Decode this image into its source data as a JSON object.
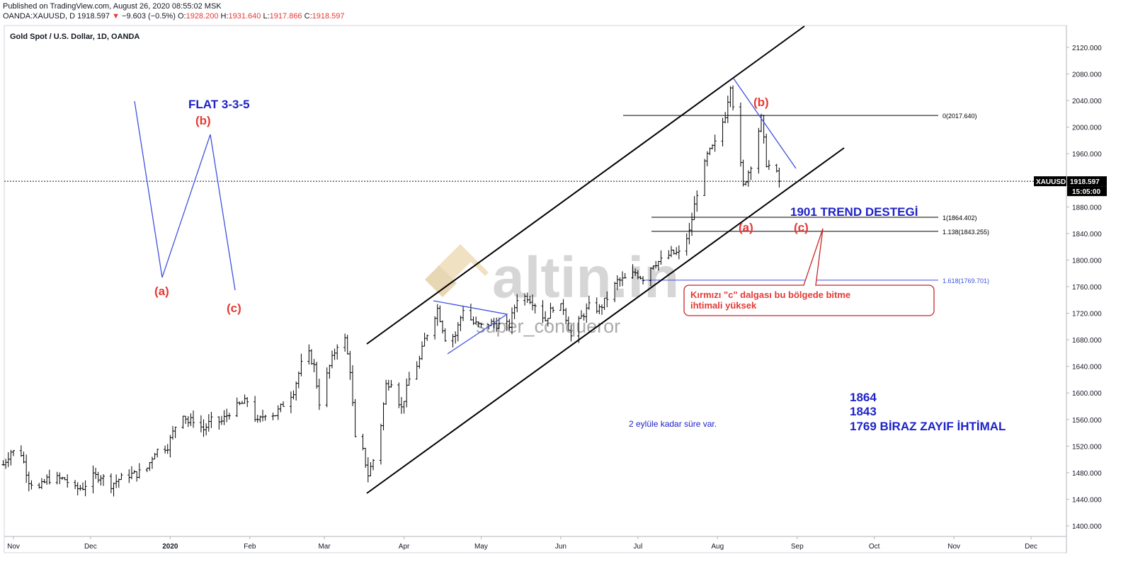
{
  "header": {
    "published": "Published on TradingView.com, August 26, 2020 08:55:02 MSK",
    "symbol_line": "OANDA:XAUUSD, D",
    "last": "1918.597",
    "change": "−9.603 (−0.5%)",
    "open_label": "O:",
    "open": "1928.200",
    "high_label": "H:",
    "high": "1931.640",
    "low_label": "L:",
    "low": "1917.866",
    "close_label": "C:",
    "close": "1918.597",
    "down_arrow": "▼"
  },
  "chart_data": {
    "type": "candlestick",
    "title": "Gold Spot / U.S. Dollar, 1D, OANDA",
    "ylim": [
      1360,
      2150
    ],
    "y_ticks": [
      "2120.000",
      "2080.000",
      "2040.000",
      "2000.000",
      "1960.000",
      "1920.000",
      "1880.000",
      "1840.000",
      "1800.000",
      "1760.000",
      "1720.000",
      "1680.000",
      "1640.000",
      "1600.000",
      "1560.000",
      "1520.000",
      "1480.000",
      "1440.000",
      "1400.000"
    ],
    "x_ticks": [
      "Nov",
      "Dec",
      "2020",
      "Feb",
      "Mar",
      "Apr",
      "May",
      "Jun",
      "Jul",
      "Aug",
      "Sep",
      "Oct",
      "Nov",
      "Dec"
    ],
    "x_range": [
      "2019-10-25",
      "2020-12-31"
    ],
    "price_tag": {
      "symbol": "XAUUSD",
      "value": "1918.597",
      "time": "15:05:00",
      "price": 1918.597
    },
    "fib_levels": [
      {
        "label": "0(2017.640)",
        "value": 2017.64
      },
      {
        "label": "1(1864.402)",
        "value": 1864.402
      },
      {
        "label": "1.138(1843.255)",
        "value": 1843.255
      },
      {
        "label": "1.618(1769.701)",
        "value": 1769.701
      }
    ],
    "closes": [
      [
        "2019-10-28",
        1492
      ],
      [
        "2019-10-31",
        1512
      ],
      [
        "2019-11-04",
        1509
      ],
      [
        "2019-11-07",
        1468
      ],
      [
        "2019-11-11",
        1456
      ],
      [
        "2019-11-14",
        1470
      ],
      [
        "2019-11-18",
        1471
      ],
      [
        "2019-11-21",
        1470
      ],
      [
        "2019-11-25",
        1455
      ],
      [
        "2019-11-28",
        1458
      ],
      [
        "2019-12-02",
        1474
      ],
      [
        "2019-12-05",
        1475
      ],
      [
        "2019-12-09",
        1462
      ],
      [
        "2019-12-12",
        1470
      ],
      [
        "2019-12-16",
        1477
      ],
      [
        "2019-12-19",
        1478
      ],
      [
        "2019-12-23",
        1487
      ],
      [
        "2019-12-26",
        1512
      ],
      [
        "2019-12-31",
        1520
      ],
      [
        "2020-01-03",
        1550
      ],
      [
        "2020-01-06",
        1570
      ],
      [
        "2020-01-08",
        1556
      ],
      [
        "2020-01-10",
        1560
      ],
      [
        "2020-01-14",
        1545
      ],
      [
        "2020-01-17",
        1558
      ],
      [
        "2020-01-21",
        1557
      ],
      [
        "2020-01-24",
        1571
      ],
      [
        "2020-01-28",
        1582
      ],
      [
        "2020-01-31",
        1588
      ],
      [
        "2020-02-04",
        1555
      ],
      [
        "2020-02-07",
        1570
      ],
      [
        "2020-02-11",
        1568
      ],
      [
        "2020-02-14",
        1583
      ],
      [
        "2020-02-18",
        1603
      ],
      [
        "2020-02-21",
        1643
      ],
      [
        "2020-02-24",
        1658
      ],
      [
        "2020-02-26",
        1640
      ],
      [
        "2020-02-28",
        1586
      ],
      [
        "2020-03-03",
        1640
      ],
      [
        "2020-03-06",
        1673
      ],
      [
        "2020-03-09",
        1680
      ],
      [
        "2020-03-11",
        1635
      ],
      [
        "2020-03-13",
        1530
      ],
      [
        "2020-03-16",
        1512
      ],
      [
        "2020-03-18",
        1477
      ],
      [
        "2020-03-20",
        1499
      ],
      [
        "2020-03-23",
        1553
      ],
      [
        "2020-03-25",
        1612
      ],
      [
        "2020-03-27",
        1618
      ],
      [
        "2020-03-31",
        1577
      ],
      [
        "2020-04-03",
        1620
      ],
      [
        "2020-04-07",
        1650
      ],
      [
        "2020-04-09",
        1680
      ],
      [
        "2020-04-14",
        1727
      ],
      [
        "2020-04-17",
        1683
      ],
      [
        "2020-04-21",
        1687
      ],
      [
        "2020-04-24",
        1727
      ],
      [
        "2020-04-28",
        1705
      ],
      [
        "2020-05-01",
        1700
      ],
      [
        "2020-05-05",
        1705
      ],
      [
        "2020-05-08",
        1702
      ],
      [
        "2020-05-12",
        1702
      ],
      [
        "2020-05-15",
        1743
      ],
      [
        "2020-05-19",
        1745
      ],
      [
        "2020-05-22",
        1734
      ],
      [
        "2020-05-26",
        1710
      ],
      [
        "2020-05-29",
        1730
      ],
      [
        "2020-06-02",
        1728
      ],
      [
        "2020-06-05",
        1685
      ],
      [
        "2020-06-09",
        1714
      ],
      [
        "2020-06-12",
        1730
      ],
      [
        "2020-06-16",
        1726
      ],
      [
        "2020-06-19",
        1743
      ],
      [
        "2020-06-23",
        1768
      ],
      [
        "2020-06-26",
        1771
      ],
      [
        "2020-06-30",
        1781
      ],
      [
        "2020-07-03",
        1773
      ],
      [
        "2020-07-07",
        1795
      ],
      [
        "2020-07-10",
        1799
      ],
      [
        "2020-07-14",
        1810
      ],
      [
        "2020-07-17",
        1810
      ],
      [
        "2020-07-21",
        1842
      ],
      [
        "2020-07-24",
        1902
      ],
      [
        "2020-07-28",
        1957
      ],
      [
        "2020-07-31",
        1975
      ],
      [
        "2020-08-04",
        2019
      ],
      [
        "2020-08-06",
        2065
      ],
      [
        "2020-08-07",
        2035
      ],
      [
        "2020-08-11",
        1911
      ],
      [
        "2020-08-14",
        1944
      ],
      [
        "2020-08-18",
        2013
      ],
      [
        "2020-08-20",
        1946
      ],
      [
        "2020-08-24",
        1929
      ],
      [
        "2020-08-25",
        1918.6
      ]
    ]
  },
  "annotations": {
    "flat_title": "FLAT 3-3-5",
    "wave_b_left": "(b)",
    "wave_a_left": "(a)",
    "wave_c_left": "(c)",
    "wave_b_right": "(b)",
    "wave_a_right": "(a)",
    "wave_c_right": "(c)",
    "trend_support": "1901 TREND DESTEGİ",
    "callout_line1": "Kırmızı \"c\" dalgası bu bölgede bitme",
    "callout_line2": "ihtimali yüksek",
    "deadline_note": "2 eylüle kadar süre var.",
    "targets": [
      "1864",
      "1843",
      "1769 BİRAZ ZAYIF İHTİMAL"
    ],
    "watermark_logo": "altin.in",
    "watermark_author": "super_conqueror"
  },
  "colors": {
    "red": "#e53935",
    "blue": "#1e22c8",
    "line_blue": "#3f51e0",
    "black": "#000000",
    "axis_text": "#131722",
    "watermark": "#c9a860",
    "callout_red": "#c62828"
  }
}
